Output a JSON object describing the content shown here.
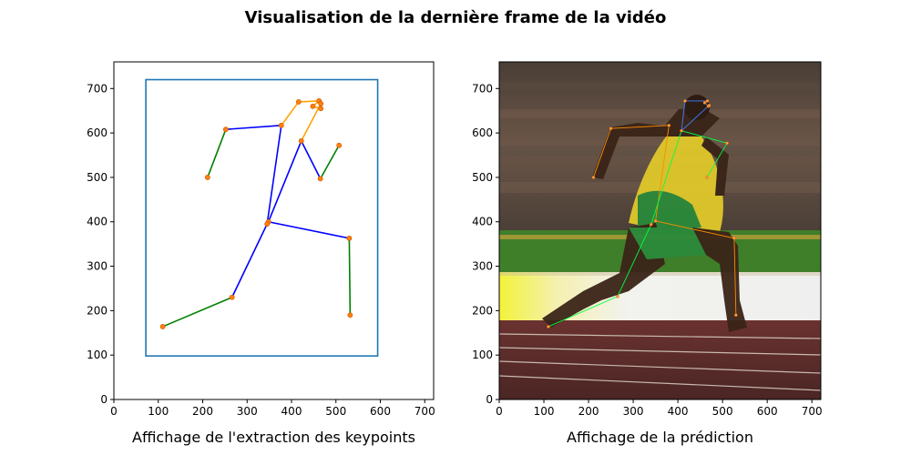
{
  "figure": {
    "title": "Visualisation de la dernière frame de la vidéo"
  },
  "chart_data": [
    {
      "type": "scatter",
      "panel": "left",
      "xlabel": "Affichage de l'extraction des keypoints",
      "ylabel": "",
      "xlim": [
        0,
        720
      ],
      "ylim": [
        0,
        760
      ],
      "xticks": [
        0,
        100,
        200,
        300,
        400,
        500,
        600,
        700
      ],
      "yticks": [
        0,
        100,
        200,
        300,
        400,
        500,
        600,
        700
      ],
      "grid": false,
      "colors": {
        "head": "#ffa500",
        "arms_legs": "#008000",
        "torso": "#0000ff",
        "bbox": "#1f77b4",
        "points": "#ff7f0e"
      },
      "bbox": {
        "x1": 72,
        "y1": 98,
        "x2": 594,
        "y2": 720
      },
      "keypoints": [
        {
          "id": 0,
          "x": 448,
          "y": 660
        },
        {
          "id": 1,
          "x": 462,
          "y": 672
        },
        {
          "id": 2,
          "x": 466,
          "y": 655
        },
        {
          "id": 3,
          "x": 416,
          "y": 670
        },
        {
          "id": 4,
          "x": 466,
          "y": 666
        },
        {
          "id": 5,
          "x": 377,
          "y": 617
        },
        {
          "id": 6,
          "x": 252,
          "y": 608
        },
        {
          "id": 7,
          "x": 422,
          "y": 582
        },
        {
          "id": 8,
          "x": 211,
          "y": 500
        },
        {
          "id": 9,
          "x": 507,
          "y": 572
        },
        {
          "id": 10,
          "x": 465,
          "y": 497
        },
        {
          "id": 11,
          "x": 348,
          "y": 400
        },
        {
          "id": 12,
          "x": 345,
          "y": 395
        },
        {
          "id": 13,
          "x": 530,
          "y": 363
        },
        {
          "id": 14,
          "x": 266,
          "y": 230
        },
        {
          "id": 15,
          "x": 532,
          "y": 190
        },
        {
          "id": 16,
          "x": 110,
          "y": 164
        }
      ],
      "edges": [
        {
          "a": 0,
          "b": 1,
          "group": "head"
        },
        {
          "a": 0,
          "b": 2,
          "group": "head"
        },
        {
          "a": 1,
          "b": 3,
          "group": "head"
        },
        {
          "a": 2,
          "b": 4,
          "group": "head"
        },
        {
          "a": 3,
          "b": 5,
          "group": "head"
        },
        {
          "a": 4,
          "b": 7,
          "group": "head"
        },
        {
          "a": 6,
          "b": 8,
          "group": "arms_legs"
        },
        {
          "a": 9,
          "b": 10,
          "group": "arms_legs"
        },
        {
          "a": 14,
          "b": 16,
          "group": "arms_legs"
        },
        {
          "a": 13,
          "b": 15,
          "group": "arms_legs"
        },
        {
          "a": 5,
          "b": 6,
          "group": "torso"
        },
        {
          "a": 5,
          "b": 12,
          "group": "torso"
        },
        {
          "a": 7,
          "b": 11,
          "group": "torso"
        },
        {
          "a": 7,
          "b": 10,
          "group": "torso"
        },
        {
          "a": 11,
          "b": 13,
          "group": "torso"
        },
        {
          "a": 12,
          "b": 14,
          "group": "torso"
        }
      ]
    },
    {
      "type": "scatter",
      "panel": "right",
      "xlabel": "Affichage de la prédiction",
      "ylabel": "",
      "xlim": [
        0,
        720
      ],
      "ylim": [
        0,
        760
      ],
      "xticks": [
        0,
        100,
        200,
        300,
        400,
        500,
        600,
        700
      ],
      "yticks": [
        0,
        100,
        200,
        300,
        400,
        500,
        600,
        700
      ],
      "grid": false,
      "background_image": "sprinter-photo",
      "colors": {
        "left_side": "#ff8c00",
        "right_side": "#00ff40",
        "head": "#4080ff"
      },
      "keypoints": [
        {
          "id": 0,
          "x": 460,
          "y": 668
        },
        {
          "id": 1,
          "x": 466,
          "y": 672
        },
        {
          "id": 2,
          "x": 468,
          "y": 660
        },
        {
          "id": 3,
          "x": 416,
          "y": 672
        },
        {
          "id": 4,
          "x": 470,
          "y": 662
        },
        {
          "id": 5,
          "x": 380,
          "y": 617
        },
        {
          "id": 6,
          "x": 250,
          "y": 610
        },
        {
          "id": 7,
          "x": 408,
          "y": 605
        },
        {
          "id": 8,
          "x": 211,
          "y": 500
        },
        {
          "id": 9,
          "x": 510,
          "y": 577
        },
        {
          "id": 10,
          "x": 465,
          "y": 500
        },
        {
          "id": 11,
          "x": 350,
          "y": 402
        },
        {
          "id": 12,
          "x": 340,
          "y": 394
        },
        {
          "id": 13,
          "x": 526,
          "y": 363
        },
        {
          "id": 14,
          "x": 265,
          "y": 232
        },
        {
          "id": 15,
          "x": 530,
          "y": 190
        },
        {
          "id": 16,
          "x": 110,
          "y": 164
        }
      ],
      "edges": [
        {
          "a": 0,
          "b": 1,
          "group": "head"
        },
        {
          "a": 0,
          "b": 2,
          "group": "head"
        },
        {
          "a": 1,
          "b": 3,
          "group": "head"
        },
        {
          "a": 2,
          "b": 4,
          "group": "head"
        },
        {
          "a": 3,
          "b": 7,
          "group": "head"
        },
        {
          "a": 4,
          "b": 7,
          "group": "head"
        },
        {
          "a": 5,
          "b": 6,
          "group": "left_side"
        },
        {
          "a": 6,
          "b": 8,
          "group": "left_side"
        },
        {
          "a": 5,
          "b": 11,
          "group": "left_side"
        },
        {
          "a": 11,
          "b": 13,
          "group": "left_side"
        },
        {
          "a": 13,
          "b": 15,
          "group": "left_side"
        },
        {
          "a": 7,
          "b": 9,
          "group": "right_side"
        },
        {
          "a": 9,
          "b": 10,
          "group": "right_side"
        },
        {
          "a": 7,
          "b": 12,
          "group": "right_side"
        },
        {
          "a": 12,
          "b": 14,
          "group": "right_side"
        },
        {
          "a": 14,
          "b": 16,
          "group": "right_side"
        }
      ]
    }
  ]
}
